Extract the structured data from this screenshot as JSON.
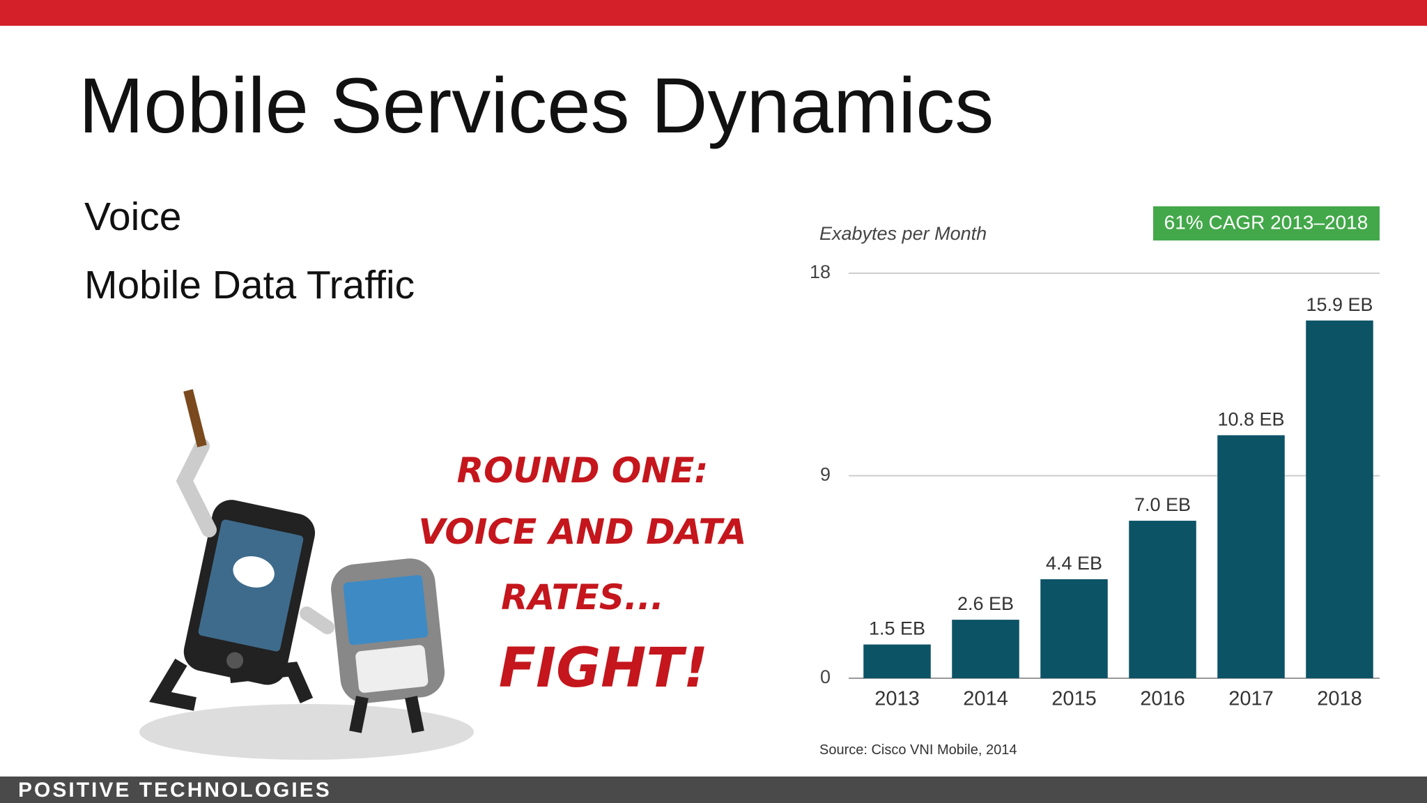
{
  "slide": {
    "title": "Mobile Services Dynamics",
    "bullets": [
      "Voice",
      "Mobile Data Traffic"
    ],
    "cartoon_text": [
      "ROUND ONE:",
      "VOICE AND DATA",
      "RATES...",
      "FIGHT!"
    ],
    "footer": "POSITIVE TECHNOLOGIES"
  },
  "chart_data": {
    "type": "bar",
    "y_axis_label": "Exabytes per Month",
    "annotation": "61% CAGR 2013–2018",
    "source": "Source: Cisco VNI Mobile, 2014",
    "categories": [
      "2013",
      "2014",
      "2015",
      "2016",
      "2017",
      "2018"
    ],
    "values": [
      1.5,
      2.6,
      4.4,
      7.0,
      10.8,
      15.9
    ],
    "value_labels": [
      "1.5 EB",
      "2.6 EB",
      "4.4 EB",
      "7.0 EB",
      "10.8 EB",
      "15.9 EB"
    ],
    "color": "#0d5366",
    "ylim": [
      0,
      18
    ],
    "yticks": [
      0,
      9,
      18
    ],
    "grid": true
  }
}
